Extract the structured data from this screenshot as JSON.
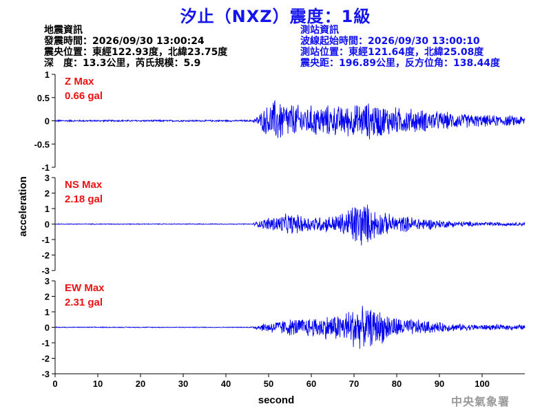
{
  "title": "汐止（NXZ）震度：1級",
  "quake_info": {
    "heading": "地震資訊",
    "origin_time": "發震時間：2026/09/30 13:00:24",
    "epicenter": "震央位置：東經122.93度，北緯23.75度",
    "depth_magnitude": "深　度：13.3公里，芮氏規模：5.9"
  },
  "station_info": {
    "heading": "測站資訊",
    "wave_start": "波線起始時間：2026/09/30 13:00:10",
    "location": "測站位置：東經121.64度，北緯25.08度",
    "distance": "震央距：196.89公里，反方位角：138.44度"
  },
  "agency": "中央氣象署",
  "colors": {
    "trace": "#0000ee",
    "max_label": "#ee1111",
    "title": "#1414ee",
    "station_info": "#1010ee"
  },
  "chart_data": {
    "type": "line",
    "xlabel": "second",
    "ylabel": "acceleration",
    "x_range": [
      0,
      110
    ],
    "x_ticks": [
      0,
      10,
      20,
      30,
      40,
      50,
      60,
      70,
      80,
      90,
      100
    ],
    "panels": [
      {
        "component": "Z",
        "max_label": "Z Max",
        "max_value": "0.66 gal",
        "ylim": [
          -1,
          1
        ],
        "y_ticks": [
          1,
          0.5,
          0,
          -0.5,
          -1
        ],
        "y_tick_labels": [
          "1",
          "0.5",
          "0",
          "-0.5",
          "-1"
        ],
        "envelope": [
          [
            0,
            0.02
          ],
          [
            46,
            0.02
          ],
          [
            47,
            0.08
          ],
          [
            49,
            0.3
          ],
          [
            52,
            0.55
          ],
          [
            54,
            0.45
          ],
          [
            58,
            0.35
          ],
          [
            62,
            0.38
          ],
          [
            66,
            0.35
          ],
          [
            70,
            0.38
          ],
          [
            74,
            0.45
          ],
          [
            76,
            0.4
          ],
          [
            80,
            0.32
          ],
          [
            85,
            0.28
          ],
          [
            90,
            0.22
          ],
          [
            95,
            0.18
          ],
          [
            100,
            0.14
          ],
          [
            105,
            0.13
          ],
          [
            110,
            0.12
          ]
        ]
      },
      {
        "component": "NS",
        "max_label": "NS Max",
        "max_value": "2.18 gal",
        "ylim": [
          -3,
          3
        ],
        "y_ticks": [
          3,
          2,
          1,
          0,
          -1,
          -2,
          -3
        ],
        "y_tick_labels": [
          "3",
          "2",
          "1",
          "0",
          "-1",
          "-2",
          "-3"
        ],
        "envelope": [
          [
            0,
            0.03
          ],
          [
            46,
            0.03
          ],
          [
            47,
            0.15
          ],
          [
            50,
            0.5
          ],
          [
            55,
            0.75
          ],
          [
            60,
            0.55
          ],
          [
            65,
            0.6
          ],
          [
            68,
            0.9
          ],
          [
            70,
            1.6
          ],
          [
            72,
            1.7
          ],
          [
            74,
            1.2
          ],
          [
            77,
            0.8
          ],
          [
            80,
            0.6
          ],
          [
            85,
            0.5
          ],
          [
            90,
            0.3
          ],
          [
            95,
            0.2
          ],
          [
            100,
            0.15
          ],
          [
            110,
            0.12
          ]
        ]
      },
      {
        "component": "EW",
        "max_label": "EW Max",
        "max_value": "2.31 gal",
        "ylim": [
          -3,
          3
        ],
        "y_ticks": [
          3,
          2,
          1,
          0,
          -1,
          -2,
          -3
        ],
        "y_tick_labels": [
          "3",
          "2",
          "1",
          "0",
          "-1",
          "-2",
          "-3"
        ],
        "envelope": [
          [
            0,
            0.03
          ],
          [
            46,
            0.03
          ],
          [
            47,
            0.15
          ],
          [
            50,
            0.4
          ],
          [
            55,
            0.6
          ],
          [
            60,
            0.7
          ],
          [
            65,
            0.9
          ],
          [
            68,
            1.1
          ],
          [
            70,
            1.6
          ],
          [
            72,
            1.4
          ],
          [
            75,
            1.3
          ],
          [
            78,
            1.0
          ],
          [
            80,
            0.7
          ],
          [
            85,
            0.55
          ],
          [
            90,
            0.35
          ],
          [
            95,
            0.25
          ],
          [
            100,
            0.2
          ],
          [
            110,
            0.18
          ]
        ]
      }
    ]
  }
}
